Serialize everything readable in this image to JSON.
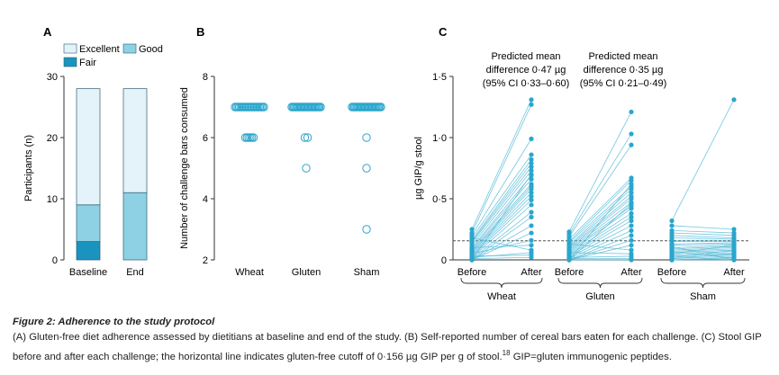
{
  "colors": {
    "excellent": "#e4f3f9",
    "good": "#8fd1e4",
    "fair": "#1a93bf",
    "accent": "#2aa6cc",
    "line": "#5bbcd9",
    "axis": "#333333",
    "dashed": "#555555"
  },
  "figure": {
    "caption_title": "Figure 2: Adherence to the study protocol",
    "caption_body": "(A) Gluten-free diet adherence assessed by dietitians at baseline and end of the study. (B) Self-reported number of cereal bars eaten for each challenge. (C) Stool GIP before and after each challenge; the horizontal line indicates gluten-free cutoff of 0·156 µg GIP per g of stool.",
    "caption_ref": "18",
    "caption_tail": " GIP=gluten immunogenic peptides."
  },
  "chart_data": [
    {
      "panel": "A",
      "type": "bar",
      "stacked": true,
      "categories": [
        "Baseline",
        "End"
      ],
      "series": [
        {
          "name": "Fair",
          "color_key": "fair",
          "values": [
            3,
            0
          ]
        },
        {
          "name": "Good",
          "color_key": "good",
          "values": [
            6,
            11
          ]
        },
        {
          "name": "Excellent",
          "color_key": "excellent",
          "values": [
            19,
            17
          ]
        }
      ],
      "legend": [
        {
          "name": "Excellent",
          "color_key": "excellent"
        },
        {
          "name": "Good",
          "color_key": "good"
        },
        {
          "name": "Fair",
          "color_key": "fair"
        }
      ],
      "ylabel": "Participants (n)",
      "ylim": [
        0,
        30
      ],
      "yticks": [
        0,
        10,
        20,
        30
      ]
    },
    {
      "panel": "B",
      "type": "scatter",
      "categories": [
        "Wheat",
        "Gluten",
        "Sham"
      ],
      "points": [
        {
          "cat": "Wheat",
          "y": 7,
          "n": 22
        },
        {
          "cat": "Wheat",
          "y": 6,
          "n": 6
        },
        {
          "cat": "Gluten",
          "y": 7,
          "n": 25
        },
        {
          "cat": "Gluten",
          "y": 6,
          "n": 2
        },
        {
          "cat": "Gluten",
          "y": 5,
          "n": 1
        },
        {
          "cat": "Sham",
          "y": 7,
          "n": 25
        },
        {
          "cat": "Sham",
          "y": 6,
          "n": 1
        },
        {
          "cat": "Sham",
          "y": 5,
          "n": 1
        },
        {
          "cat": "Sham",
          "y": 3,
          "n": 1
        }
      ],
      "ylabel": "Number of challenge bars consumed",
      "ylim": [
        2,
        8
      ],
      "yticks": [
        2,
        4,
        6,
        8
      ]
    },
    {
      "panel": "C",
      "type": "line",
      "groups": [
        "Wheat",
        "Gluten",
        "Sham"
      ],
      "xticks": [
        "Before",
        "After"
      ],
      "ylabel": "µg GIP/g stool",
      "ylim": [
        0,
        1.5
      ],
      "yticks": [
        "0",
        "0·5",
        "1·0",
        "1·5"
      ],
      "ytick_values": [
        0,
        0.5,
        1.0,
        1.5
      ],
      "cutoff": 0.156,
      "annotations": [
        {
          "group": "Wheat",
          "lines": [
            "Predicted mean",
            "difference 0·47 µg",
            "(95% CI 0·33–0·60)"
          ]
        },
        {
          "group": "Gluten",
          "lines": [
            "Predicted mean",
            "difference 0·35 µg",
            "(95% CI 0·21–0·49)"
          ]
        }
      ],
      "series": [
        {
          "group": "Wheat",
          "before": [
            0.25,
            0.22,
            0.2,
            0.18,
            0.16,
            0.15,
            0.14,
            0.12,
            0.1,
            0.09,
            0.08,
            0.07,
            0.06,
            0.05,
            0.04,
            0.03,
            0.02,
            0.01,
            0,
            0,
            0,
            0.05,
            0.1,
            0.18,
            0.02,
            0.03,
            0.01,
            0
          ],
          "after": [
            1.31,
            1.27,
            0.99,
            0.86,
            0.82,
            0.79,
            0.76,
            0.73,
            0.69,
            0.66,
            0.62,
            0.6,
            0.58,
            0.55,
            0.52,
            0.49,
            0.45,
            0.39,
            0.35,
            0.28,
            0.22,
            0.16,
            0.12,
            0.08,
            0.06,
            0.04,
            0.02,
            0.7
          ]
        },
        {
          "group": "Gluten",
          "before": [
            0.23,
            0.21,
            0.19,
            0.17,
            0.15,
            0.14,
            0.12,
            0.11,
            0.1,
            0.09,
            0.08,
            0.07,
            0.06,
            0.05,
            0.04,
            0.03,
            0.02,
            0.01,
            0,
            0,
            0,
            0.13,
            0.06,
            0.02,
            0.01,
            0,
            0,
            0
          ],
          "after": [
            1.21,
            1.03,
            0.94,
            0.67,
            0.65,
            0.6,
            0.58,
            0.55,
            0.52,
            0.5,
            0.47,
            0.44,
            0.42,
            0.38,
            0.35,
            0.32,
            0.28,
            0.24,
            0.2,
            0.16,
            0.12,
            0.08,
            0.05,
            0.03,
            0.01,
            0,
            0.62,
            0.46
          ]
        },
        {
          "group": "Sham",
          "before": [
            0.32,
            0.28,
            0.24,
            0.22,
            0.2,
            0.18,
            0.16,
            0.15,
            0.13,
            0.12,
            0.1,
            0.09,
            0.08,
            0.07,
            0.06,
            0.05,
            0.04,
            0.03,
            0.02,
            0.01,
            0,
            0,
            0,
            0.11,
            0.05,
            0.02,
            0.01,
            0
          ],
          "after": [
            1.31,
            0.25,
            0.22,
            0.2,
            0.18,
            0.17,
            0.16,
            0.15,
            0.14,
            0.13,
            0.12,
            0.11,
            0.1,
            0.09,
            0.08,
            0.07,
            0.06,
            0.05,
            0.04,
            0.03,
            0.02,
            0.01,
            0,
            0,
            0.12,
            0.08,
            0.05,
            0.02
          ]
        }
      ]
    }
  ]
}
